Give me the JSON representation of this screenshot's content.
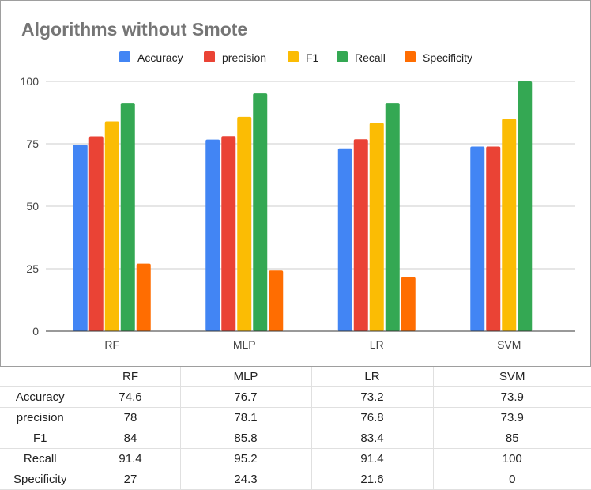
{
  "chart_data": {
    "type": "bar",
    "title": "Algorithms without Smote",
    "categories": [
      "RF",
      "MLP",
      "LR",
      "SVM"
    ],
    "series": [
      {
        "name": "Accuracy",
        "color": "#4285f4",
        "values": [
          74.6,
          76.7,
          73.2,
          73.9
        ]
      },
      {
        "name": "precision",
        "color": "#ea4335",
        "values": [
          78,
          78.1,
          76.8,
          73.9
        ]
      },
      {
        "name": "F1",
        "color": "#fbbc04",
        "values": [
          84,
          85.8,
          83.4,
          85
        ]
      },
      {
        "name": "Recall",
        "color": "#34a853",
        "values": [
          91.4,
          95.2,
          91.4,
          100
        ]
      },
      {
        "name": "Specificity",
        "color": "#ff6d01",
        "values": [
          27,
          24.3,
          21.6,
          0
        ]
      }
    ],
    "ylim": [
      0,
      100
    ],
    "yticks": [
      0,
      25,
      50,
      75,
      100
    ],
    "grid": true,
    "legend": "top"
  },
  "table": {
    "header": [
      "",
      "RF",
      "MLP",
      "LR",
      "SVM"
    ],
    "rows": [
      [
        "Accuracy",
        "74.6",
        "76.7",
        "73.2",
        "73.9"
      ],
      [
        "precision",
        "78",
        "78.1",
        "76.8",
        "73.9"
      ],
      [
        "F1",
        "84",
        "85.8",
        "83.4",
        "85"
      ],
      [
        "Recall",
        "91.4",
        "95.2",
        "91.4",
        "100"
      ],
      [
        "Specificity",
        "27",
        "24.3",
        "21.6",
        "0"
      ]
    ]
  }
}
